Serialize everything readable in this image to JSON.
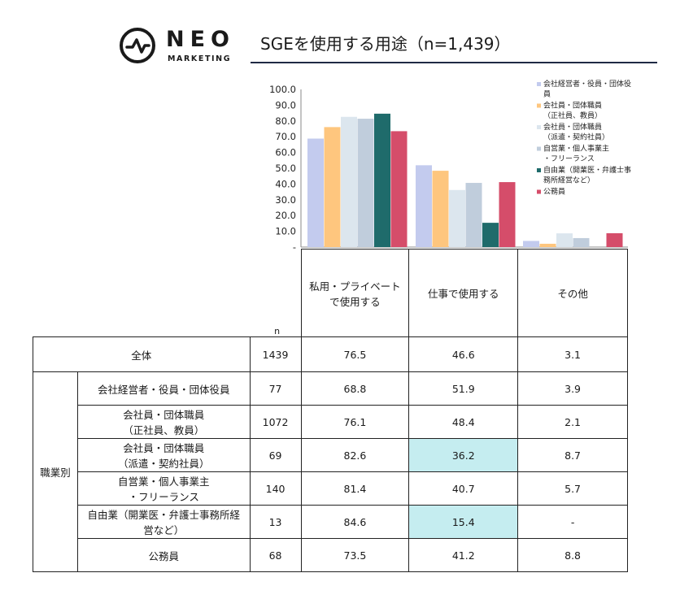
{
  "logo": {
    "word": "NEO",
    "sub": "MARKETING",
    "icon": "neo-circle-logo-icon"
  },
  "title": "SGEを使用する用途（n=1,439）",
  "chart_data": {
    "type": "bar",
    "categories_display": [
      "私用・プライベート\nで使用する",
      "仕事で使用する",
      "その他"
    ],
    "categories": [
      "私用・プライベートで使用する",
      "仕事で使用する",
      "その他"
    ],
    "ylim": [
      0,
      100
    ],
    "yticks": [
      "100.0",
      "90.0",
      "80.0",
      "70.0",
      "60.0",
      "50.0",
      "40.0",
      "30.0",
      "20.0",
      "10.0",
      "-"
    ],
    "legend_position": "top-right",
    "series": [
      {
        "name": "会社経営者・役員・団体役員",
        "legend_lines": [
          "会社経営者・役員・団体役",
          "員"
        ],
        "color": "#c3cbee",
        "values": [
          68.8,
          51.9,
          3.9
        ]
      },
      {
        "name": "会社員・団体職員（正社員、教員）",
        "legend_lines": [
          "会社員・団体職員",
          "（正社員、教員）"
        ],
        "color": "#fec67e",
        "values": [
          76.1,
          48.4,
          2.1
        ]
      },
      {
        "name": "会社員・団体職員（派遣・契約社員）",
        "legend_lines": [
          "会社員・団体職員",
          "（派遣・契約社員）"
        ],
        "color": "#dce6ee",
        "values": [
          82.6,
          36.2,
          8.7
        ]
      },
      {
        "name": "自営業・個人事業主・フリーランス",
        "legend_lines": [
          "自営業・個人事業主",
          "・フリーランス"
        ],
        "color": "#c0cddc",
        "values": [
          81.4,
          40.7,
          5.7
        ]
      },
      {
        "name": "自由業（開業医・弁護士事務所経営など）",
        "legend_lines": [
          "自由業（開業医・弁護士事",
          "務所経営など）"
        ],
        "color": "#1f6b6b",
        "values": [
          84.6,
          15.4,
          0
        ]
      },
      {
        "name": "公務員",
        "legend_lines": [
          "公務員"
        ],
        "color": "#d54d6a",
        "values": [
          73.5,
          41.2,
          8.8
        ]
      }
    ]
  },
  "table": {
    "n_label": "n",
    "headers": [
      "私用・プライベート\nで使用する",
      "仕事で使用する",
      "その他"
    ],
    "group_label": "職業別",
    "highlight_color": "#c5edf0",
    "rows": [
      {
        "label": "全体",
        "n": "1439",
        "v": [
          "76.5",
          "46.6",
          "3.1"
        ],
        "hl": [
          false,
          false,
          false
        ]
      },
      {
        "label": "会社経営者・役員・団体役員",
        "n": "77",
        "v": [
          "68.8",
          "51.9",
          "3.9"
        ],
        "hl": [
          false,
          false,
          false
        ]
      },
      {
        "label": "会社員・団体職員\n（正社員、教員）",
        "n": "1072",
        "v": [
          "76.1",
          "48.4",
          "2.1"
        ],
        "hl": [
          false,
          false,
          false
        ]
      },
      {
        "label": "会社員・団体職員\n（派遣・契約社員）",
        "n": "69",
        "v": [
          "82.6",
          "36.2",
          "8.7"
        ],
        "hl": [
          false,
          true,
          false
        ]
      },
      {
        "label": "自営業・個人事業主\n・フリーランス",
        "n": "140",
        "v": [
          "81.4",
          "40.7",
          "5.7"
        ],
        "hl": [
          false,
          false,
          false
        ]
      },
      {
        "label": "自由業（開業医・弁護士事務所経\n営など）",
        "n": "13",
        "v": [
          "84.6",
          "15.4",
          "-"
        ],
        "hl": [
          false,
          true,
          false
        ]
      },
      {
        "label": "公務員",
        "n": "68",
        "v": [
          "73.5",
          "41.2",
          "8.8"
        ],
        "hl": [
          false,
          false,
          false
        ]
      }
    ]
  }
}
